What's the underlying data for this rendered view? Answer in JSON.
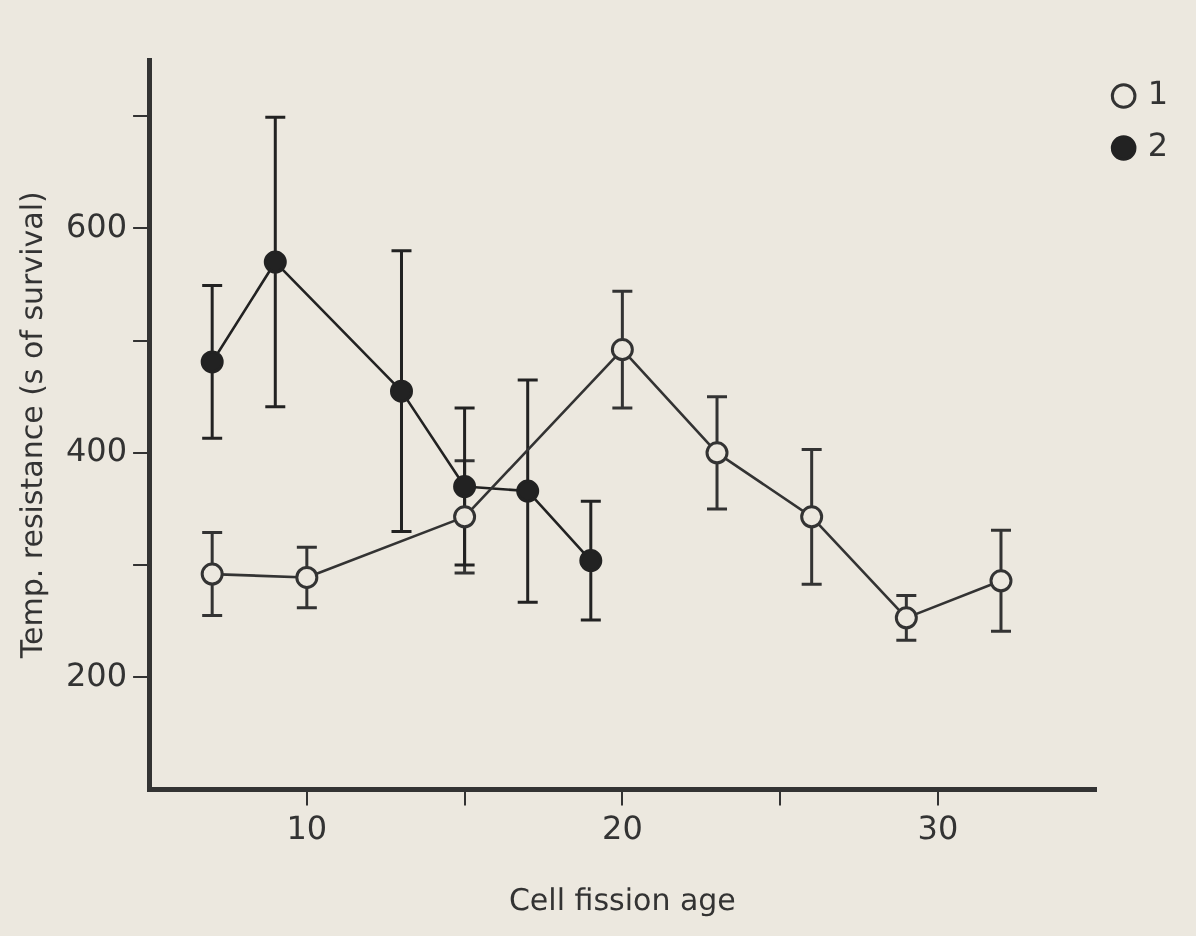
{
  "chart_data": {
    "type": "line",
    "xlabel": "Cell fission age",
    "ylabel": "Temp. resistance (s of survival)",
    "xlim": [
      5,
      35
    ],
    "xticks": [
      10,
      {
        "value": 15,
        "label": null
      },
      20,
      {
        "value": 25,
        "label": null
      },
      30
    ],
    "ylim": [
      100,
      750
    ],
    "yticks": [
      200,
      {
        "value": 300,
        "label": null
      },
      400,
      {
        "value": 500,
        "label": null
      },
      600,
      {
        "value": 700,
        "label": null
      }
    ],
    "grid": false,
    "legend": "top right",
    "marker": "circle",
    "line_style": "solid",
    "series": [
      {
        "name": "1",
        "color": "#333333",
        "x": [
          7,
          10,
          15,
          20,
          23,
          26,
          29,
          32
        ],
        "values": [
          292,
          289,
          343,
          492,
          400,
          343,
          253,
          286
        ],
        "errors": [
          37,
          27,
          50,
          52,
          50,
          60,
          20,
          45
        ]
      },
      {
        "name": "2",
        "color": "#222222",
        "x": [
          7,
          9,
          13,
          15,
          17,
          19
        ],
        "values": [
          481,
          570,
          455,
          370,
          366,
          304
        ],
        "errors": [
          68,
          129,
          125,
          70,
          99,
          53
        ]
      }
    ]
  }
}
